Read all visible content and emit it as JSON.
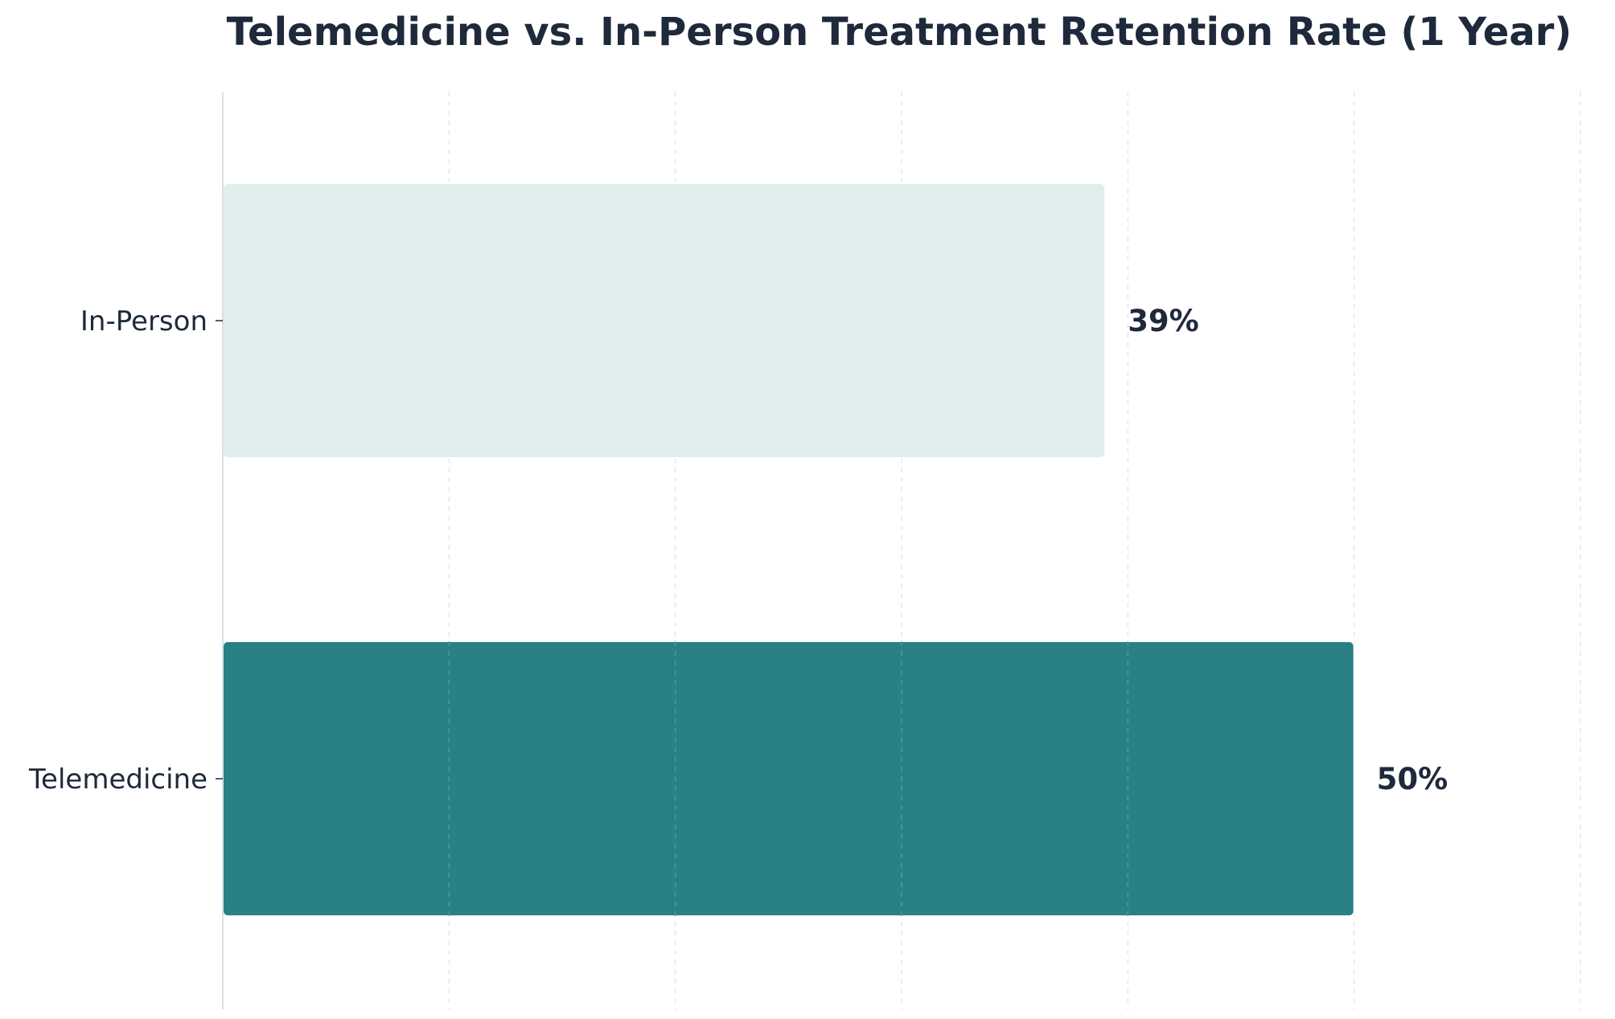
{
  "chart_data": {
    "type": "bar",
    "orientation": "horizontal",
    "title": "Telemedicine vs. In-Person Treatment Retention Rate (1 Year)",
    "xlabel": "",
    "ylabel": "",
    "categories": [
      "In-Person",
      "Telemedicine"
    ],
    "values": [
      39,
      50
    ],
    "value_labels": [
      "39%",
      "50%"
    ],
    "colors": [
      "#e0eeee",
      "#298186"
    ],
    "xlim": [
      0,
      60
    ],
    "x_gridlines": [
      10,
      20,
      30,
      40,
      50,
      60
    ],
    "grid": true,
    "legend": false
  }
}
